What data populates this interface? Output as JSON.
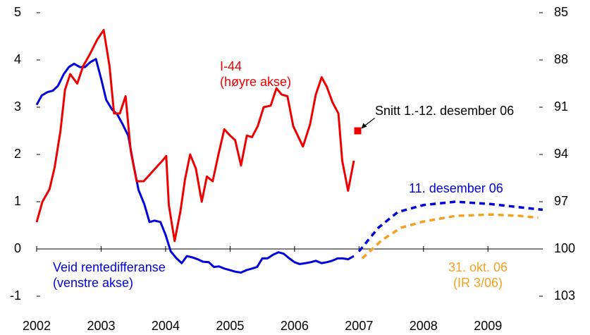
{
  "chart_data": {
    "type": "line",
    "xlim": [
      2002,
      2009.85
    ],
    "xticks": [
      2002,
      2003,
      2004,
      2005,
      2006,
      2007,
      2008,
      2009
    ],
    "ylim": [
      -1,
      5
    ],
    "yticks": [
      -1,
      0,
      1,
      2,
      3,
      4,
      5
    ],
    "y2lim": [
      103,
      85
    ],
    "y2ticks": [
      103,
      100,
      97,
      94,
      91,
      88,
      85
    ],
    "series": [
      {
        "name": "Veid rentedifferanse",
        "note": "(venstre akse)",
        "color": "#0000dd",
        "axis": "y",
        "dash": false,
        "x": [
          2002.0,
          2002.08,
          2002.17,
          2002.25,
          2002.33,
          2002.42,
          2002.5,
          2002.58,
          2002.67,
          2002.75,
          2002.83,
          2002.92,
          2003.0,
          2003.08,
          2003.17,
          2003.25,
          2003.33,
          2003.42,
          2003.5,
          2003.58,
          2003.67,
          2003.75,
          2003.83,
          2003.92,
          2004.0,
          2004.08,
          2004.17,
          2004.25,
          2004.33,
          2004.42,
          2004.5,
          2004.58,
          2004.67,
          2004.75,
          2004.83,
          2004.92,
          2005.0,
          2005.08,
          2005.17,
          2005.25,
          2005.33,
          2005.42,
          2005.5,
          2005.58,
          2005.67,
          2005.75,
          2005.83,
          2005.92,
          2006.0,
          2006.08,
          2006.17,
          2006.25,
          2006.33,
          2006.42,
          2006.5,
          2006.58,
          2006.67,
          2006.75,
          2006.83,
          2006.92
        ],
        "values": [
          3.05,
          3.25,
          3.32,
          3.35,
          3.45,
          3.7,
          3.85,
          3.92,
          3.85,
          3.85,
          3.95,
          4.02,
          3.6,
          3.15,
          2.95,
          2.85,
          2.65,
          2.4,
          1.8,
          1.25,
          0.95,
          0.57,
          0.6,
          0.57,
          0.3,
          -0.05,
          -0.2,
          -0.3,
          -0.15,
          -0.18,
          -0.22,
          -0.27,
          -0.28,
          -0.38,
          -0.37,
          -0.42,
          -0.45,
          -0.48,
          -0.5,
          -0.45,
          -0.42,
          -0.38,
          -0.2,
          -0.2,
          -0.12,
          -0.07,
          -0.1,
          -0.2,
          -0.28,
          -0.32,
          -0.3,
          -0.28,
          -0.25,
          -0.3,
          -0.28,
          -0.25,
          -0.2,
          -0.2,
          -0.22,
          -0.15
        ]
      },
      {
        "name": "I-44",
        "note": "(høyre akse)",
        "color": "#ee0000",
        "axis": "y2",
        "dash": false,
        "x": [
          2002.0,
          2002.09,
          2002.2,
          2002.28,
          2002.37,
          2002.44,
          2002.52,
          2002.63,
          2002.72,
          2002.83,
          2002.94,
          2003.04,
          2003.13,
          2003.2,
          2003.29,
          2003.38,
          2003.46,
          2003.55,
          2003.66,
          2003.75,
          2003.86,
          2003.95,
          2004.01,
          2004.05,
          2004.14,
          2004.23,
          2004.3,
          2004.38,
          2004.47,
          2004.56,
          2004.64,
          2004.73,
          2004.82,
          2004.91,
          2005.0,
          2005.08,
          2005.17,
          2005.26,
          2005.34,
          2005.43,
          2005.52,
          2005.63,
          2005.72,
          2005.8,
          2005.89,
          2005.98,
          2006.13,
          2006.24,
          2006.33,
          2006.42,
          2006.5,
          2006.59,
          2006.68,
          2006.74,
          2006.83,
          2006.92
        ],
        "values": [
          98.3,
          97.0,
          96.2,
          94.8,
          92.5,
          89.9,
          88.9,
          89.5,
          88.4,
          87.6,
          86.7,
          86.1,
          88.4,
          91.4,
          91.4,
          90.3,
          93.8,
          95.7,
          95.7,
          95.3,
          94.8,
          94.4,
          94.1,
          97.2,
          99.5,
          97.6,
          95.6,
          94.0,
          94.9,
          97.0,
          95.4,
          95.7,
          94.0,
          92.4,
          92.8,
          93.1,
          94.7,
          92.8,
          92.9,
          92.2,
          91.0,
          90.9,
          89.8,
          90.2,
          90.3,
          92.2,
          93.5,
          92.1,
          90.2,
          89.1,
          89.7,
          90.7,
          91.4,
          94.4,
          96.3,
          94.4
        ]
      },
      {
        "name": "Snitt 1.-12. desember 06",
        "color": "#ee0000",
        "axis": "y2",
        "marker": "square",
        "x": [
          2006.98
        ],
        "values": [
          92.5
        ]
      },
      {
        "name": "11. desember 06",
        "color": "#0000dd",
        "axis": "y",
        "dash": true,
        "x": [
          2007.0,
          2007.3,
          2007.6,
          2008.0,
          2008.5,
          2009.05,
          2009.5,
          2009.85
        ],
        "values": [
          -0.05,
          0.45,
          0.78,
          0.93,
          1.0,
          0.95,
          0.88,
          0.83
        ]
      },
      {
        "name": "31. okt. 06",
        "note": "(IR 3/06)",
        "color": "#f5a020",
        "axis": "y",
        "dash": true,
        "x": [
          2007.05,
          2007.35,
          2007.65,
          2008.0,
          2008.5,
          2009.05,
          2009.5,
          2009.78
        ],
        "values": [
          -0.2,
          0.18,
          0.45,
          0.58,
          0.7,
          0.73,
          0.7,
          0.66
        ]
      }
    ]
  }
}
